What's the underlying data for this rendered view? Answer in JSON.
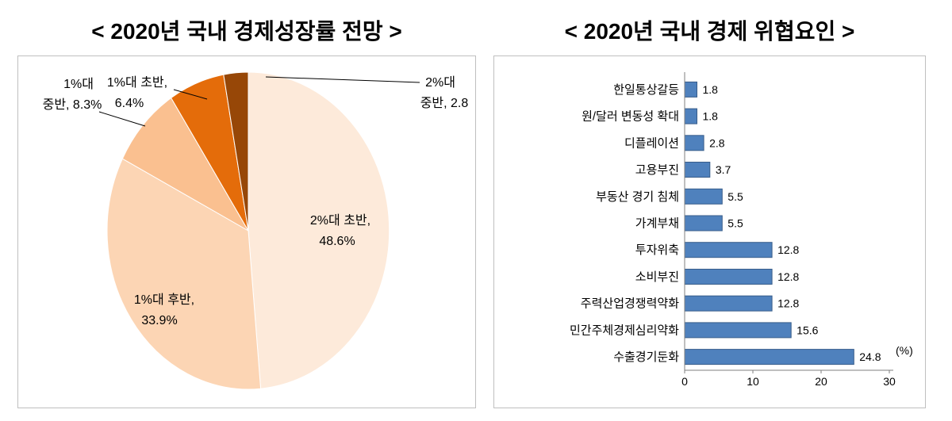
{
  "titles": {
    "left": "< 2020년 국내 경제성장률 전망 >",
    "right": "< 2020년 국내 경제 위협요인 >"
  },
  "chart_data": [
    {
      "type": "pie",
      "title": "2020년 국내 경제성장률 전망",
      "slices": [
        {
          "label": "2%대 초반",
          "value": 48.6,
          "color": "#FDEADA",
          "display": [
            "2%대 초반,",
            "48.6%"
          ],
          "placement": "inside"
        },
        {
          "label": "1%대 후반",
          "value": 33.9,
          "color": "#FCD5B4",
          "display": [
            "1%대 후반,",
            "33.9%"
          ],
          "placement": "inside"
        },
        {
          "label": "1%대 중반",
          "value": 8.3,
          "color": "#FAC090",
          "display": [
            "1%대",
            "중반, 8.3%"
          ],
          "placement": "outside"
        },
        {
          "label": "1%대 초반",
          "value": 6.4,
          "color": "#E46C0A",
          "display": [
            "1%대 초반,",
            "6.4%"
          ],
          "placement": "outside"
        },
        {
          "label": "2%대 중반",
          "value": 2.8,
          "color": "#974707",
          "display": [
            "2%대",
            "중반, 2.8"
          ],
          "placement": "outside"
        }
      ]
    },
    {
      "type": "bar",
      "orientation": "horizontal",
      "title": "2020년 국내 경제 위협요인",
      "categories": [
        "한일통상갈등",
        "원/달러 변동성 확대",
        "디플레이션",
        "고용부진",
        "부동산 경기 침체",
        "가계부채",
        "투자위축",
        "소비부진",
        "주력산업경쟁력약화",
        "민간주체경제심리약화",
        "수출경기둔화"
      ],
      "values": [
        1.8,
        1.8,
        2.8,
        3.7,
        5.5,
        5.5,
        12.8,
        12.8,
        12.8,
        15.6,
        24.8
      ],
      "value_labels": [
        "1.8",
        "1.8",
        "2.8",
        "3.7",
        "5.5",
        "5.5",
        "12.8",
        "12.8",
        "12.8",
        "15.6",
        "24.8"
      ],
      "xlim": [
        0,
        30
      ],
      "xticks": [
        "0",
        "10",
        "20",
        "30"
      ],
      "unit_label": "(%)",
      "bar_color": "#4F81BD",
      "bar_border": "#385D8A",
      "axis_color": "#7F7F7F",
      "grid": false,
      "legend": "none"
    }
  ]
}
